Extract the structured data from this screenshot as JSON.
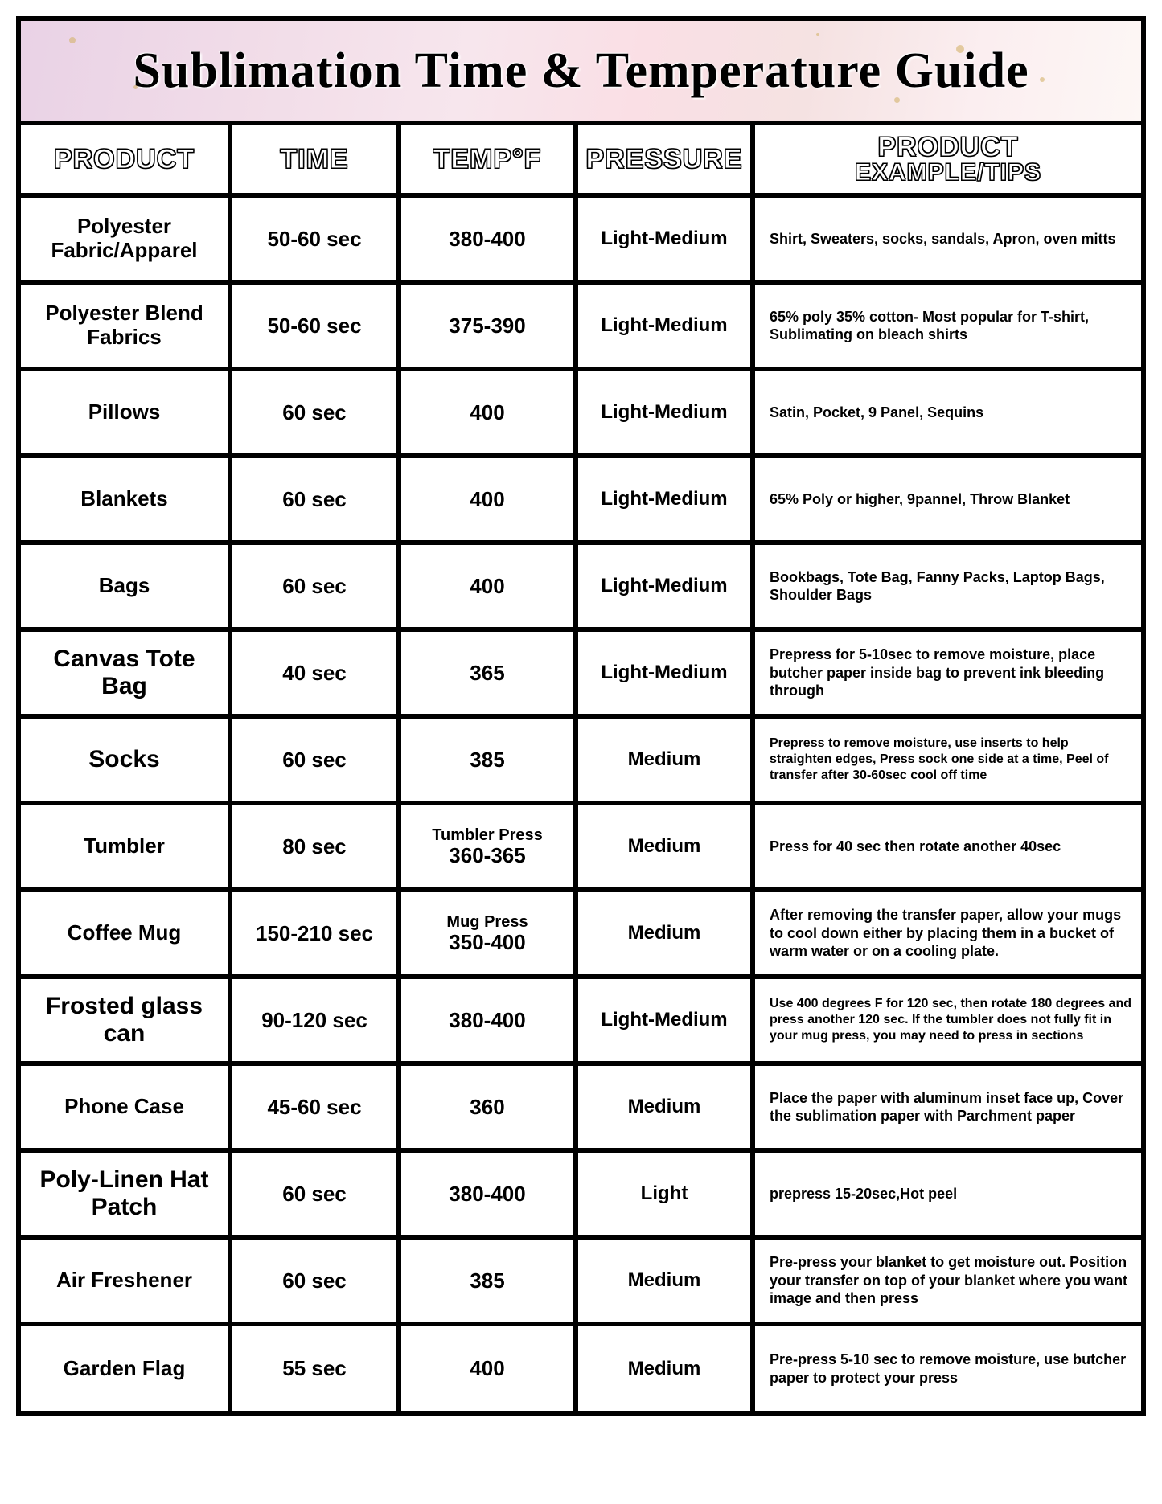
{
  "title": "Sublimation Time & Temperature Guide",
  "headers": {
    "product": "PRODUCT",
    "time": "TIME",
    "temp": "TEMP°F",
    "pressure": "PRESSURE",
    "tips_line1": "PRODUCT",
    "tips_line2": "EXAMPLE/TIPS"
  },
  "rows": [
    {
      "product": "Polyester Fabric/Apparel",
      "time": "50-60 sec",
      "temp": "380-400",
      "pressure": "Light-Medium",
      "tips": "Shirt, Sweaters, socks, sandals, Apron, oven mitts",
      "product_class": ""
    },
    {
      "product": "Polyester Blend Fabrics",
      "time": "50-60 sec",
      "temp": "375-390",
      "pressure": "Light-Medium",
      "tips": "65% poly 35% cotton- Most popular for T-shirt, Sublimating on bleach shirts",
      "product_class": ""
    },
    {
      "product": "Pillows",
      "time": "60 sec",
      "temp": "400",
      "pressure": "Light-Medium",
      "tips": "Satin, Pocket, 9 Panel, Sequins",
      "product_class": ""
    },
    {
      "product": "Blankets",
      "time": "60 sec",
      "temp": "400",
      "pressure": "Light-Medium",
      "tips": "65% Poly or higher, 9pannel, Throw Blanket",
      "product_class": ""
    },
    {
      "product": "Bags",
      "time": "60 sec",
      "temp": "400",
      "pressure": "Light-Medium",
      "tips": "Bookbags, Tote Bag, Fanny Packs, Laptop Bags, Shoulder Bags",
      "product_class": ""
    },
    {
      "product": "Canvas Tote Bag",
      "time": "40 sec",
      "temp": "365",
      "pressure": "Light-Medium",
      "tips": "Prepress for 5-10sec to remove moisture, place butcher paper inside bag to prevent ink bleeding through",
      "product_class": "product-large"
    },
    {
      "product": "Socks",
      "time": "60 sec",
      "temp": "385",
      "pressure": "Medium",
      "tips": "Prepress to remove moisture, use inserts to help straighten edges, Press sock one side at a time, Peel of transfer after 30-60sec cool off time",
      "product_class": "product-large",
      "tips_class": "tips-small"
    },
    {
      "product": "Tumbler",
      "time": "80 sec",
      "temp_sub": "Tumbler Press",
      "temp": "360-365",
      "pressure": "Medium",
      "tips": "Press for 40 sec then rotate another 40sec",
      "product_class": ""
    },
    {
      "product": "Coffee Mug",
      "time": "150-210 sec",
      "temp_sub": "Mug Press",
      "temp": "350-400",
      "pressure": "Medium",
      "tips": "After removing the transfer paper, allow your mugs to cool down either by placing them in a bucket of warm water or on a cooling plate.",
      "product_class": ""
    },
    {
      "product": "Frosted glass can",
      "time": "90-120 sec",
      "temp": "380-400",
      "pressure": "Light-Medium",
      "tips": "Use 400 degrees F for 120 sec, then rotate 180 degrees and press another 120 sec. If the tumbler does not fully fit in your mug press, you may need to press in sections",
      "product_class": "product-large",
      "tips_class": "tips-small"
    },
    {
      "product": "Phone Case",
      "time": "45-60 sec",
      "temp": "360",
      "pressure": "Medium",
      "tips": "Place the paper with aluminum inset face up, Cover the sublimation paper with Parchment paper",
      "product_class": ""
    },
    {
      "product": "Poly-Linen Hat Patch",
      "time": "60 sec",
      "temp": "380-400",
      "pressure": "Light",
      "tips": "prepress 15-20sec,Hot peel",
      "product_class": "product-large"
    },
    {
      "product": "Air Freshener",
      "time": "60 sec",
      "temp": "385",
      "pressure": "Medium",
      "tips": "Pre-press your blanket to get moisture out. Position your transfer on top of your blanket where you want image and then press",
      "product_class": ""
    },
    {
      "product": "Garden Flag",
      "time": "55 sec",
      "temp": "400",
      "pressure": "Medium",
      "tips": "Pre-press 5-10 sec to remove moisture, use butcher paper to protect your press",
      "product_class": ""
    }
  ]
}
